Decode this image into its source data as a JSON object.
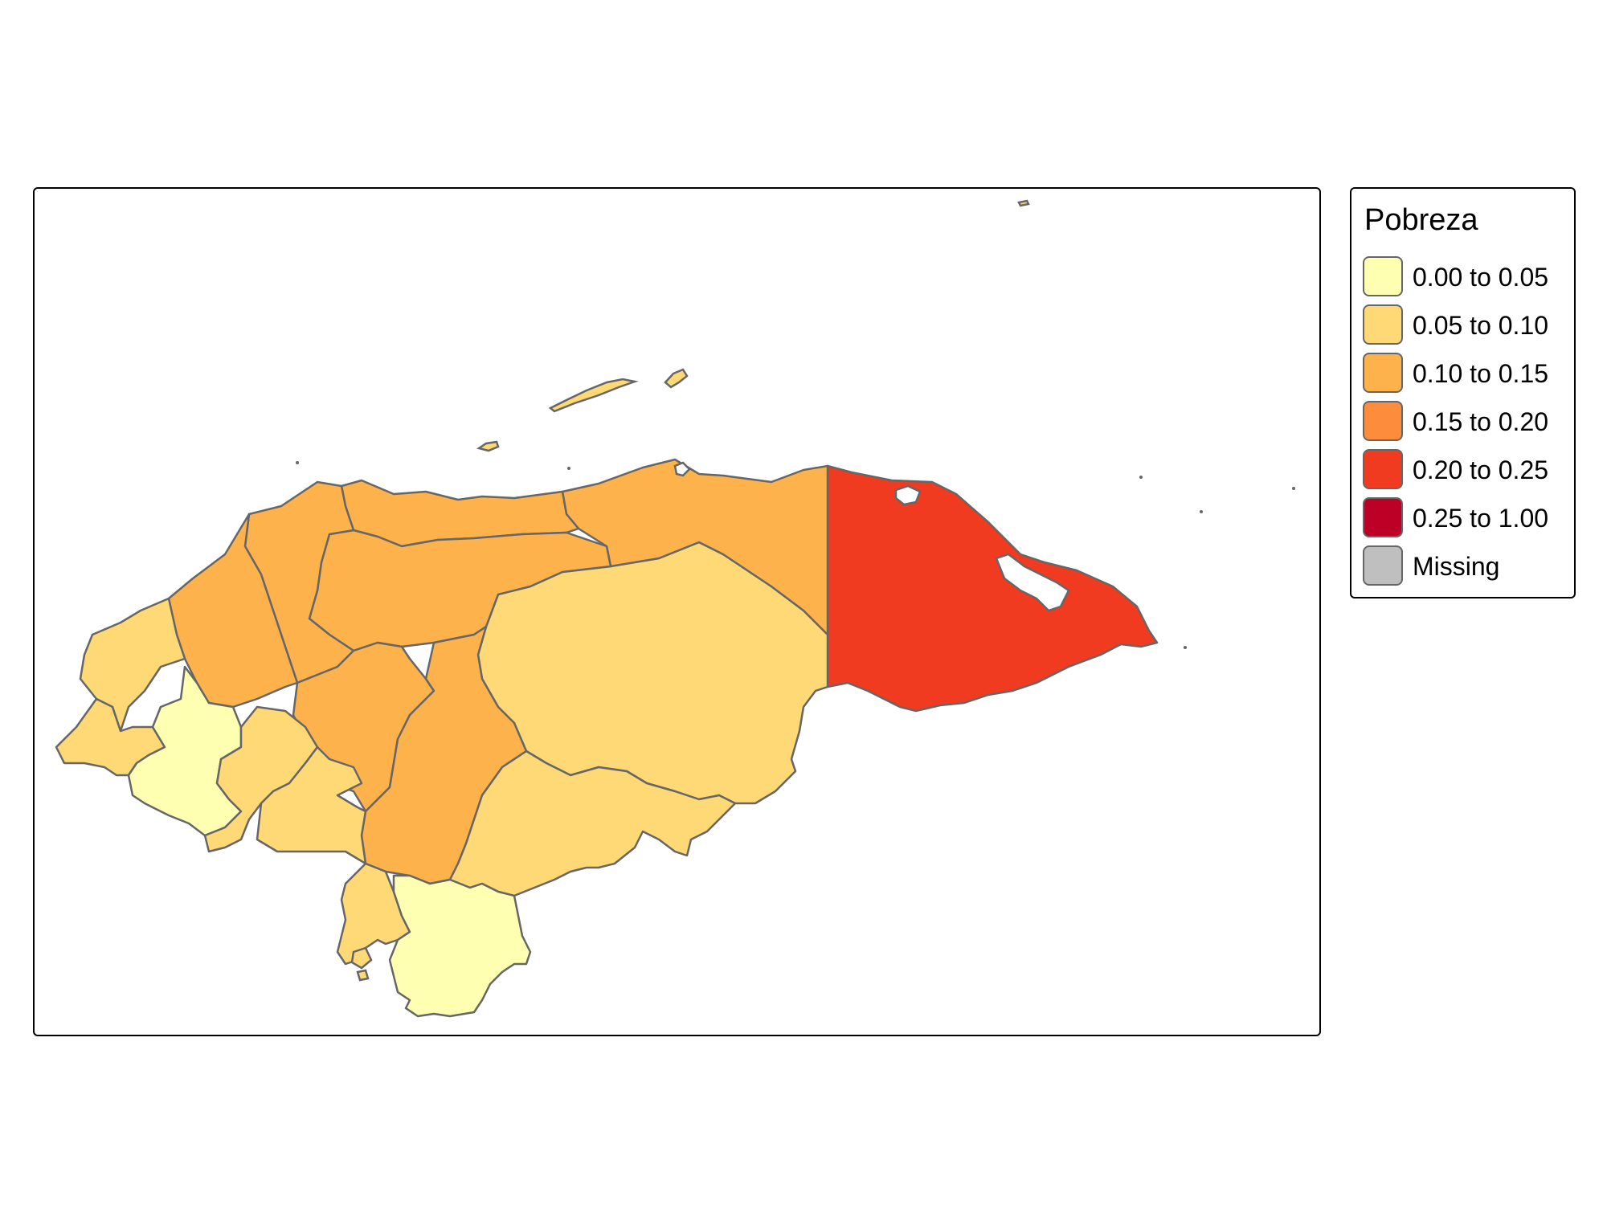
{
  "legend": {
    "title": "Pobreza",
    "items": [
      {
        "label": "0.00 to 0.05",
        "color": "#FFFFB2"
      },
      {
        "label": "0.05 to 0.10",
        "color": "#FED976"
      },
      {
        "label": "0.10 to 0.15",
        "color": "#FEB24C"
      },
      {
        "label": "0.15 to 0.20",
        "color": "#FD8D3C"
      },
      {
        "label": "0.20 to 0.25",
        "color": "#F03B20"
      },
      {
        "label": "0.25 to 1.00",
        "color": "#BD0026"
      },
      {
        "label": "Missing",
        "color": "#BFBFBF"
      }
    ]
  },
  "map": {
    "border_color": "#666666",
    "departments": [
      {
        "id": "gracias-a-dios",
        "class": "0.20 to 0.25"
      },
      {
        "id": "olancho",
        "class": "0.05 to 0.10"
      },
      {
        "id": "colon",
        "class": "0.10 to 0.15"
      },
      {
        "id": "atlantida",
        "class": "0.10 to 0.15"
      },
      {
        "id": "yoro",
        "class": "0.10 to 0.15"
      },
      {
        "id": "cortes",
        "class": "0.10 to 0.15"
      },
      {
        "id": "santa-barbara",
        "class": "0.10 to 0.15"
      },
      {
        "id": "comayagua",
        "class": "0.10 to 0.15"
      },
      {
        "id": "francisco-morazan",
        "class": "0.10 to 0.15"
      },
      {
        "id": "copan",
        "class": "0.05 to 0.10"
      },
      {
        "id": "ocotepeque",
        "class": "0.05 to 0.10"
      },
      {
        "id": "lempira",
        "class": "0.00 to 0.05"
      },
      {
        "id": "intibuca",
        "class": "0.05 to 0.10"
      },
      {
        "id": "la-paz",
        "class": "0.05 to 0.10"
      },
      {
        "id": "el-paraiso",
        "class": "0.05 to 0.10"
      },
      {
        "id": "valle",
        "class": "0.05 to 0.10"
      },
      {
        "id": "choluteca",
        "class": "0.00 to 0.05"
      },
      {
        "id": "islas-de-la-bahia",
        "class": "0.05 to 0.10"
      }
    ]
  }
}
